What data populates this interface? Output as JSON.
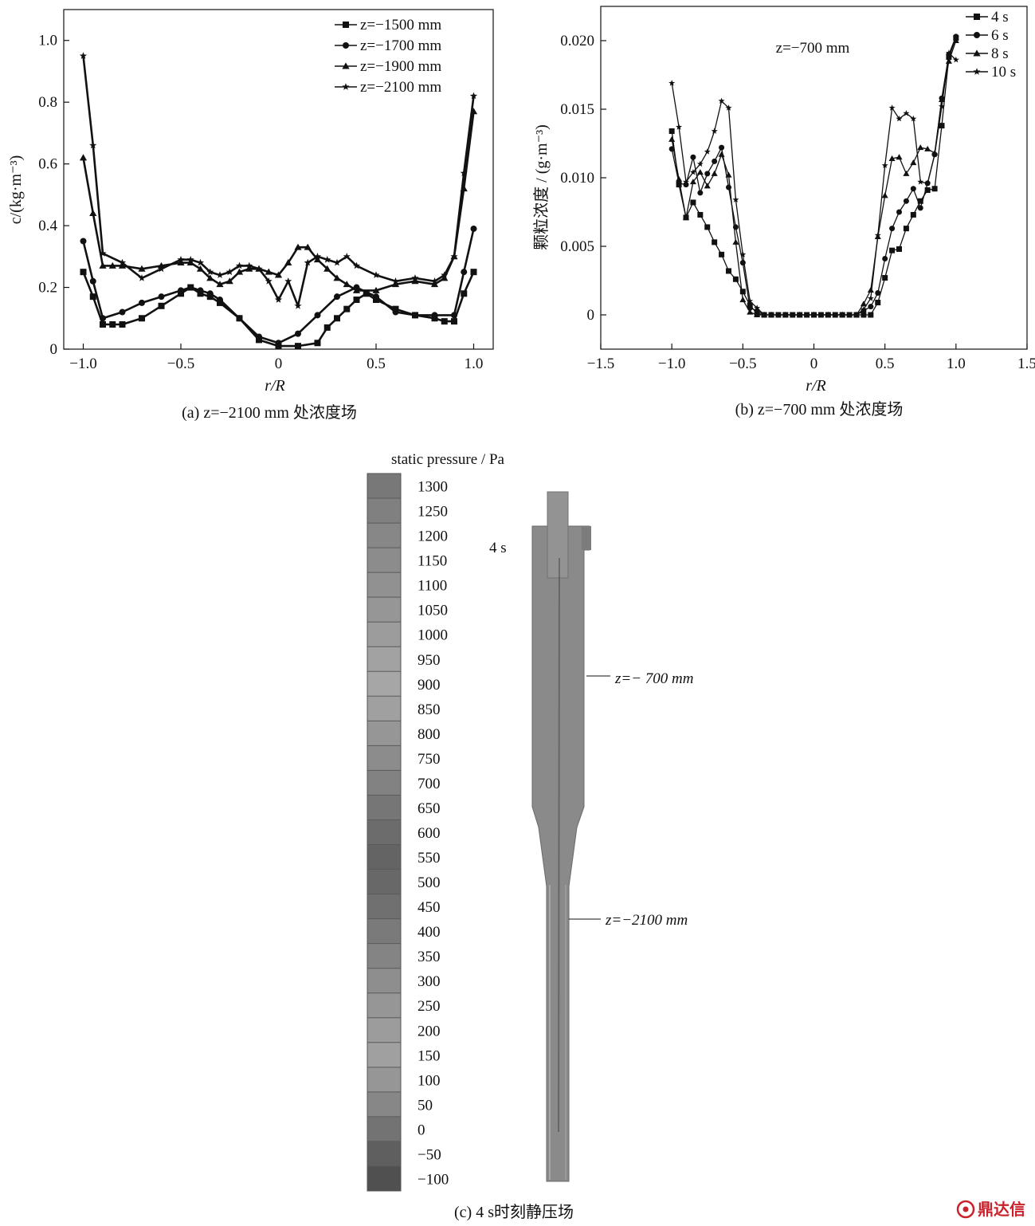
{
  "chart_data": [
    {
      "id": "a",
      "type": "line",
      "caption": "(a) z=−2100 mm 处浓度场",
      "xlabel": "r/R",
      "ylabel": "c/(kg·m⁻³)",
      "xlim": [
        -1.1,
        1.1
      ],
      "ylim": [
        0,
        1.1
      ],
      "xticks": [
        -1.0,
        -0.5,
        0,
        0.5,
        1.0
      ],
      "xtick_labels": [
        "−1.0",
        "−0.5",
        "0",
        "0.5",
        "1.0"
      ],
      "yticks": [
        0,
        0.2,
        0.4,
        0.6,
        0.8,
        1.0
      ],
      "ytick_labels": [
        "0",
        "0.2",
        "0.4",
        "0.6",
        "0.8",
        "1.0"
      ],
      "legend_position": "top-right",
      "grid": false,
      "series": [
        {
          "name": "z=−1500 mm",
          "marker": "square",
          "x": [
            -1.0,
            -0.95,
            -0.9,
            -0.85,
            -0.8,
            -0.7,
            -0.6,
            -0.5,
            -0.45,
            -0.4,
            -0.35,
            -0.3,
            -0.2,
            -0.1,
            0.0,
            0.1,
            0.2,
            0.25,
            0.3,
            0.35,
            0.4,
            0.45,
            0.5,
            0.6,
            0.7,
            0.8,
            0.85,
            0.9,
            0.95,
            1.0
          ],
          "y": [
            0.25,
            0.17,
            0.08,
            0.08,
            0.08,
            0.1,
            0.14,
            0.18,
            0.2,
            0.18,
            0.17,
            0.15,
            0.1,
            0.03,
            0.01,
            0.01,
            0.02,
            0.07,
            0.1,
            0.13,
            0.16,
            0.18,
            0.16,
            0.13,
            0.11,
            0.1,
            0.09,
            0.09,
            0.18,
            0.25
          ]
        },
        {
          "name": "z=−1700 mm",
          "marker": "circle",
          "x": [
            -1.0,
            -0.95,
            -0.9,
            -0.8,
            -0.7,
            -0.6,
            -0.5,
            -0.45,
            -0.4,
            -0.35,
            -0.3,
            -0.2,
            -0.1,
            0.0,
            0.1,
            0.2,
            0.3,
            0.4,
            0.5,
            0.6,
            0.7,
            0.8,
            0.9,
            0.95,
            1.0
          ],
          "y": [
            0.35,
            0.22,
            0.1,
            0.12,
            0.15,
            0.17,
            0.19,
            0.2,
            0.19,
            0.18,
            0.16,
            0.1,
            0.04,
            0.02,
            0.05,
            0.11,
            0.17,
            0.2,
            0.17,
            0.12,
            0.11,
            0.11,
            0.11,
            0.25,
            0.39
          ]
        },
        {
          "name": "z=−1900 mm",
          "marker": "triangle",
          "x": [
            -1.0,
            -0.95,
            -0.9,
            -0.85,
            -0.8,
            -0.7,
            -0.6,
            -0.5,
            -0.45,
            -0.4,
            -0.35,
            -0.3,
            -0.25,
            -0.2,
            -0.15,
            -0.1,
            -0.05,
            0.0,
            0.05,
            0.1,
            0.15,
            0.2,
            0.25,
            0.3,
            0.35,
            0.4,
            0.5,
            0.6,
            0.7,
            0.8,
            0.85,
            0.9,
            0.95,
            1.0
          ],
          "y": [
            0.62,
            0.44,
            0.27,
            0.27,
            0.27,
            0.26,
            0.27,
            0.28,
            0.28,
            0.26,
            0.23,
            0.21,
            0.22,
            0.25,
            0.26,
            0.26,
            0.25,
            0.24,
            0.28,
            0.33,
            0.33,
            0.29,
            0.26,
            0.23,
            0.21,
            0.19,
            0.19,
            0.21,
            0.22,
            0.21,
            0.23,
            0.3,
            0.52,
            0.77
          ]
        },
        {
          "name": "z=−2100 mm",
          "marker": "star",
          "x": [
            -1.0,
            -0.95,
            -0.9,
            -0.8,
            -0.7,
            -0.6,
            -0.5,
            -0.45,
            -0.4,
            -0.35,
            -0.3,
            -0.25,
            -0.2,
            -0.15,
            -0.1,
            -0.05,
            0.0,
            0.05,
            0.1,
            0.15,
            0.2,
            0.25,
            0.3,
            0.35,
            0.4,
            0.5,
            0.6,
            0.7,
            0.8,
            0.85,
            0.9,
            0.95,
            1.0
          ],
          "y": [
            0.95,
            0.66,
            0.31,
            0.28,
            0.23,
            0.26,
            0.29,
            0.29,
            0.28,
            0.25,
            0.24,
            0.25,
            0.27,
            0.27,
            0.26,
            0.22,
            0.16,
            0.22,
            0.14,
            0.28,
            0.3,
            0.29,
            0.28,
            0.3,
            0.27,
            0.24,
            0.22,
            0.23,
            0.22,
            0.24,
            0.3,
            0.57,
            0.82
          ]
        }
      ]
    },
    {
      "id": "b",
      "type": "line",
      "caption": "(b) z=−700 mm 处浓度场",
      "annotation": "z=−700 mm",
      "xlabel": "r/R",
      "ylabel": "颗粒浓度 / (g·m⁻³)",
      "xlim": [
        -1.5,
        1.5
      ],
      "ylim": [
        -0.0025,
        0.0225
      ],
      "xticks": [
        -1.5,
        -1.0,
        -0.5,
        0,
        0.5,
        1.0,
        1.5
      ],
      "xtick_labels": [
        "−1.5",
        "−1.0",
        "−0.5",
        "0",
        "0.5",
        "1.0",
        "1.5"
      ],
      "yticks": [
        0,
        0.005,
        0.01,
        0.015,
        0.02
      ],
      "ytick_labels": [
        "0",
        "0.005",
        "0.010",
        "0.015",
        "0.020"
      ],
      "legend_position": "top-right",
      "grid": false,
      "series": [
        {
          "name": "4 s",
          "marker": "square",
          "x": [
            -1.0,
            -0.95,
            -0.9,
            -0.85,
            -0.8,
            -0.75,
            -0.7,
            -0.65,
            -0.6,
            -0.55,
            -0.5,
            -0.45,
            -0.4,
            -0.35,
            -0.3,
            -0.25,
            -0.2,
            -0.15,
            -0.1,
            -0.05,
            0.0,
            0.05,
            0.1,
            0.15,
            0.2,
            0.25,
            0.3,
            0.35,
            0.4,
            0.45,
            0.5,
            0.55,
            0.6,
            0.65,
            0.7,
            0.75,
            0.8,
            0.85,
            0.9,
            0.95,
            1.0
          ],
          "y": [
            0.0134,
            0.0095,
            0.0071,
            0.0082,
            0.0073,
            0.0064,
            0.0053,
            0.0044,
            0.0032,
            0.0026,
            0.0017,
            0.0007,
            0.0001,
            0.0,
            0.0,
            0.0,
            0.0,
            0.0,
            0.0,
            0.0,
            0.0,
            0.0,
            0.0,
            0.0,
            0.0,
            0.0,
            0.0,
            0.0,
            0.0,
            0.0009,
            0.0027,
            0.0047,
            0.0048,
            0.0063,
            0.0073,
            0.0083,
            0.0091,
            0.0092,
            0.0138,
            0.0188,
            0.0202
          ]
        },
        {
          "name": "6 s",
          "marker": "circle",
          "x": [
            -1.0,
            -0.95,
            -0.9,
            -0.85,
            -0.8,
            -0.75,
            -0.7,
            -0.65,
            -0.6,
            -0.55,
            -0.5,
            -0.45,
            -0.4,
            -0.35,
            -0.3,
            -0.2,
            -0.1,
            0.0,
            0.1,
            0.2,
            0.3,
            0.35,
            0.4,
            0.45,
            0.5,
            0.55,
            0.6,
            0.65,
            0.7,
            0.75,
            0.8,
            0.85,
            0.9,
            0.95,
            1.0
          ],
          "y": [
            0.0121,
            0.0096,
            0.0095,
            0.0115,
            0.0089,
            0.0103,
            0.0112,
            0.0122,
            0.0093,
            0.0064,
            0.0038,
            0.0005,
            0.0003,
            0.0,
            0.0,
            0.0,
            0.0,
            0.0,
            0.0,
            0.0,
            0.0,
            0.0003,
            0.0006,
            0.0016,
            0.0041,
            0.0063,
            0.0075,
            0.0083,
            0.0092,
            0.0078,
            0.0096,
            0.0117,
            0.0158,
            0.019,
            0.0203
          ]
        },
        {
          "name": "8 s",
          "marker": "triangle",
          "x": [
            -1.0,
            -0.95,
            -0.9,
            -0.85,
            -0.8,
            -0.75,
            -0.7,
            -0.65,
            -0.6,
            -0.55,
            -0.5,
            -0.45,
            -0.4,
            -0.35,
            -0.3,
            -0.2,
            -0.1,
            0.0,
            0.1,
            0.2,
            0.3,
            0.35,
            0.4,
            0.45,
            0.5,
            0.55,
            0.6,
            0.65,
            0.7,
            0.75,
            0.8,
            0.85,
            0.9,
            0.95,
            1.0
          ],
          "y": [
            0.0128,
            0.0099,
            0.0071,
            0.0097,
            0.0104,
            0.0094,
            0.0103,
            0.0117,
            0.0102,
            0.0053,
            0.0011,
            0.0002,
            0.0,
            0.0,
            0.0,
            0.0,
            0.0,
            0.0,
            0.0,
            0.0,
            0.0,
            0.0008,
            0.0018,
            0.0057,
            0.0087,
            0.0114,
            0.0115,
            0.0103,
            0.0111,
            0.0122,
            0.0121,
            0.0118,
            0.0157,
            0.0185,
            0.02
          ]
        },
        {
          "name": "10 s",
          "marker": "star",
          "x": [
            -1.0,
            -0.95,
            -0.9,
            -0.85,
            -0.8,
            -0.75,
            -0.7,
            -0.65,
            -0.6,
            -0.55,
            -0.5,
            -0.45,
            -0.4,
            -0.35,
            -0.3,
            -0.2,
            -0.1,
            0.0,
            0.1,
            0.2,
            0.3,
            0.35,
            0.4,
            0.45,
            0.5,
            0.55,
            0.6,
            0.65,
            0.7,
            0.75,
            0.8,
            0.85,
            0.9,
            0.95,
            1.0
          ],
          "y": [
            0.0169,
            0.0137,
            0.0097,
            0.0104,
            0.011,
            0.0119,
            0.0134,
            0.0156,
            0.0151,
            0.0084,
            0.0044,
            0.001,
            0.0005,
            0.0,
            0.0,
            0.0,
            0.0,
            0.0,
            0.0,
            0.0,
            0.0,
            0.0004,
            0.0012,
            0.0058,
            0.0109,
            0.0151,
            0.0143,
            0.0147,
            0.0143,
            0.0097,
            0.0096,
            0.0117,
            0.0152,
            0.0191,
            0.0186
          ]
        }
      ]
    },
    {
      "id": "c",
      "type": "heatmap",
      "caption": "(c) 4 s时刻静压场",
      "colorbar_title": "static pressure / Pa",
      "colorbar_labels": [
        "1300",
        "1250",
        "1200",
        "1150",
        "1100",
        "1050",
        "1000",
        "950",
        "900",
        "850",
        "800",
        "750",
        "700",
        "650",
        "600",
        "550",
        "500",
        "450",
        "400",
        "350",
        "300",
        "250",
        "200",
        "150",
        "100",
        "50",
        "0",
        "−50",
        "−100"
      ],
      "time_label": "4 s",
      "annotations": [
        "z=− 700 mm",
        "z=−2100 mm"
      ]
    }
  ],
  "watermark": {
    "text": "鼎达信",
    "color": "#c8232c"
  }
}
